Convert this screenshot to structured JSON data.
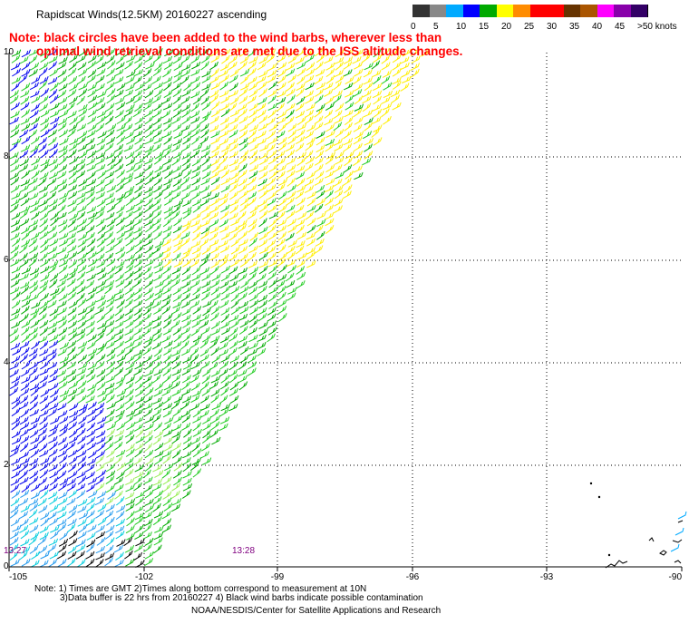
{
  "title": "Rapidscat Winds(12.5KM) 20160227 ascending",
  "note": {
    "line1": "Note: black circles have been added to the wind barbs, wherever less than",
    "line2": "optimal wind retrieval conditions are met due to the ISS altitude changes."
  },
  "colorbar": {
    "colors": [
      "#333333",
      "#888888",
      "#00aaff",
      "#0000ff",
      "#00aa00",
      "#ffff00",
      "#ff8c00",
      "#ff0000",
      "#ff0000",
      "#663300",
      "#aa5500",
      "#ff00ff",
      "#8800aa",
      "#330066"
    ],
    "labels": [
      "0",
      "5",
      "10",
      "15",
      "20",
      "25",
      "30",
      "35",
      "40",
      "45",
      ">50 knots"
    ]
  },
  "axes": {
    "x_ticks": [
      "-105",
      "-102",
      "-99",
      "-96",
      "-93",
      "-90"
    ],
    "y_ticks": [
      "0",
      "2",
      "4",
      "6",
      "8",
      "10"
    ]
  },
  "time_labels": [
    "13:27",
    "13:28"
  ],
  "footer": {
    "line1": "Note: 1) Times are GMT 2)Times along bottom correspond to measurement at 10N",
    "line2": "3)Data buffer is 22 hrs from 20160227 4) Black wind barbs indicate possible contamination",
    "line3": "NOAA/NESDIS/Center for Satellite Applications and Research"
  }
}
